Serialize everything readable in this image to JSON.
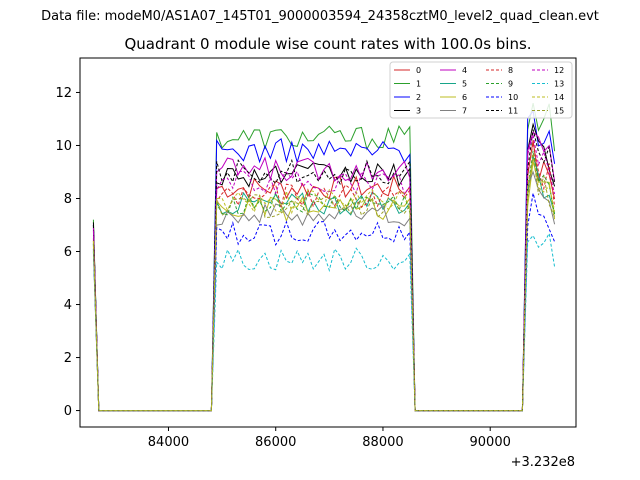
{
  "chart_data": {
    "type": "line",
    "suptitle": "Data file: modeM0/AS1A07_145T01_9000003594_24358cztM0_level2_quad_clean.evt",
    "title": "Quadrant 0 module wise count rates with 100.0s bins.",
    "xlabel": "",
    "ylabel": "",
    "x_offset_label": "+3.232e8",
    "x_offset": 323200000,
    "xlim": [
      82350,
      91600
    ],
    "ylim": [
      -0.62,
      13.3
    ],
    "xticks": [
      84000,
      86000,
      88000,
      90000
    ],
    "xtick_labels": [
      "84000",
      "86000",
      "88000",
      "90000"
    ],
    "yticks": [
      0,
      2,
      4,
      6,
      8,
      10,
      12
    ],
    "ytick_labels": [
      "0",
      "2",
      "4",
      "6",
      "8",
      "10",
      "12"
    ],
    "grid": false,
    "legend_placement": "top-right",
    "segments": [
      {
        "start": 82600,
        "end": 84700,
        "count": 22
      },
      {
        "start": 84800,
        "end": 88600,
        "count": 39
      },
      {
        "start": 88600,
        "end": 90600,
        "count": 21
      },
      {
        "start": 90600,
        "end": 91200,
        "count": 7
      }
    ],
    "series": [
      {
        "name": "0",
        "color": "#d62728",
        "dash": "solid",
        "level": 8.4,
        "spike": 6.5,
        "tail": 10.2
      },
      {
        "name": "1",
        "color": "#2ca02c",
        "dash": "solid",
        "level": 10.3,
        "spike": 7.2,
        "tail": 11.6
      },
      {
        "name": "2",
        "color": "#0000ff",
        "dash": "solid",
        "level": 9.8,
        "spike": 7.0,
        "tail": 11.3
      },
      {
        "name": "3",
        "color": "#000000",
        "dash": "solid",
        "level": 8.9,
        "spike": 7.1,
        "tail": 10.8
      },
      {
        "name": "4",
        "color": "#bf00bf",
        "dash": "solid",
        "level": 9.1,
        "spike": 6.9,
        "tail": 10.5
      },
      {
        "name": "5",
        "color": "#17a589",
        "dash": "solid",
        "level": 7.8,
        "spike": 6.3,
        "tail": 9.6
      },
      {
        "name": "6",
        "color": "#bcbd22",
        "dash": "solid",
        "level": 7.6,
        "spike": 6.2,
        "tail": 9.4
      },
      {
        "name": "7",
        "color": "#808080",
        "dash": "solid",
        "level": 7.4,
        "spike": 6.0,
        "tail": 9.0
      },
      {
        "name": "8",
        "color": "#d62728",
        "dash": "dashed",
        "level": 8.1,
        "spike": 6.4,
        "tail": 10.1
      },
      {
        "name": "9",
        "color": "#2ca02c",
        "dash": "dashed",
        "level": 7.8,
        "spike": 6.3,
        "tail": 9.8
      },
      {
        "name": "10",
        "color": "#0000ff",
        "dash": "dashed",
        "level": 6.7,
        "spike": 6.1,
        "tail": 8.2
      },
      {
        "name": "11",
        "color": "#000000",
        "dash": "dashed",
        "level": 9.0,
        "spike": 7.0,
        "tail": 10.6
      },
      {
        "name": "12",
        "color": "#bf00bf",
        "dash": "dashed",
        "level": 8.6,
        "spike": 6.8,
        "tail": 10.4
      },
      {
        "name": "13",
        "color": "#17becf",
        "dash": "dashed",
        "level": 5.7,
        "spike": 6.0,
        "tail": 6.6
      },
      {
        "name": "14",
        "color": "#bcbd22",
        "dash": "dashed",
        "level": 7.9,
        "spike": 6.4,
        "tail": 9.5
      },
      {
        "name": "15",
        "color": "#9aa02a",
        "dash": "dashed",
        "level": 7.7,
        "spike": 6.3,
        "tail": 9.7
      }
    ]
  }
}
